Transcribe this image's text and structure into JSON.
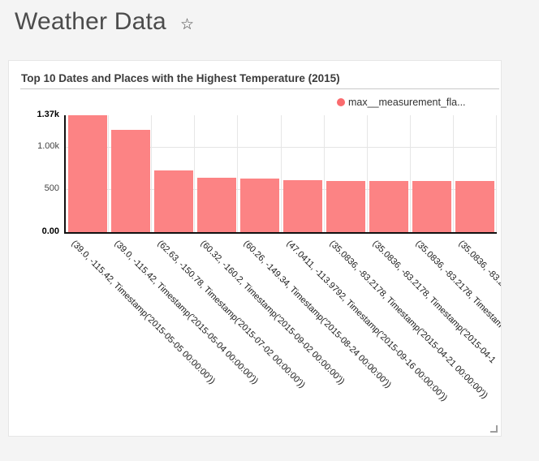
{
  "page": {
    "title": "Weather Data"
  },
  "icons": {
    "favorite_star": "☆"
  },
  "panel": {
    "title": "Top 10 Dates and Places with the Highest Temperature (2015)",
    "legend": {
      "label": "max__measurement_fla...",
      "color": "#fa6b6e"
    }
  },
  "chart_data": {
    "type": "bar",
    "title": "Top 10 Dates and Places with the Highest Temperature (2015)",
    "legend_entries": [
      "max__measurement_fla..."
    ],
    "legend_position": "top-right",
    "bar_color": "#fc8384",
    "grid": true,
    "xlabel": "",
    "ylabel": "",
    "ylim": [
      0,
      1370
    ],
    "yticks": [
      {
        "label": "1.37k",
        "value": 1370
      },
      {
        "label": "1.00k",
        "value": 1000
      },
      {
        "label": "500",
        "value": 500
      },
      {
        "label": "0.00",
        "value": 0
      }
    ],
    "gridline_values": [
      1000,
      500
    ],
    "categories": [
      "(39.0, -115.42, Timestamp('2015-05-05 00:00:00'))",
      "(39.0, -115.42, Timestamp('2015-05-04 00:00:00'))",
      "(62.63, -150.78, Timestamp('2015-07-02 00:00:00'))",
      "(60.32, -160.2, Timestamp('2015-09-02 00:00:00'))",
      "(60.26, -149.34, Timestamp('2015-08-24 00:00:00'))",
      "(47.0411, -113.9792, Timestamp('2015-09-16 00:00:00'))",
      "(35.0836, -83.2178, Timestamp('2015-04-21 00:00:00'))",
      "(35.0836, -83.2178, Timestamp('2015-04-1",
      "(35.0836, -83.2178, Timestam",
      "(35.0836, -83.2"
    ],
    "series": [
      {
        "name": "max__measurement_fla...",
        "values": [
          1370,
          1200,
          720,
          633,
          630,
          610,
          600,
          598,
          597,
          595
        ]
      }
    ]
  }
}
